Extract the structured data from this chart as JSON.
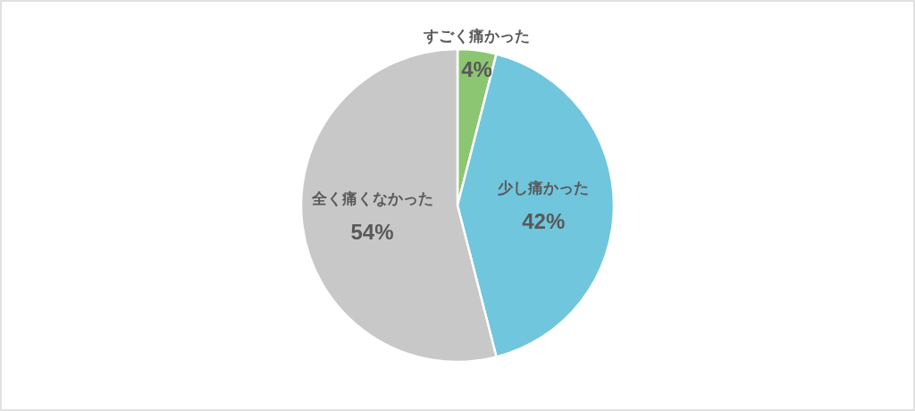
{
  "chart_data": {
    "type": "pie",
    "categories": [
      "すごく痛かった",
      "少し痛かった",
      "全く痛くなかった"
    ],
    "values": [
      4,
      42,
      54
    ],
    "colors": [
      "#8cc672",
      "#70c6dc",
      "#c8c8c8"
    ],
    "value_labels": [
      "4%",
      "42%",
      "54%"
    ]
  }
}
